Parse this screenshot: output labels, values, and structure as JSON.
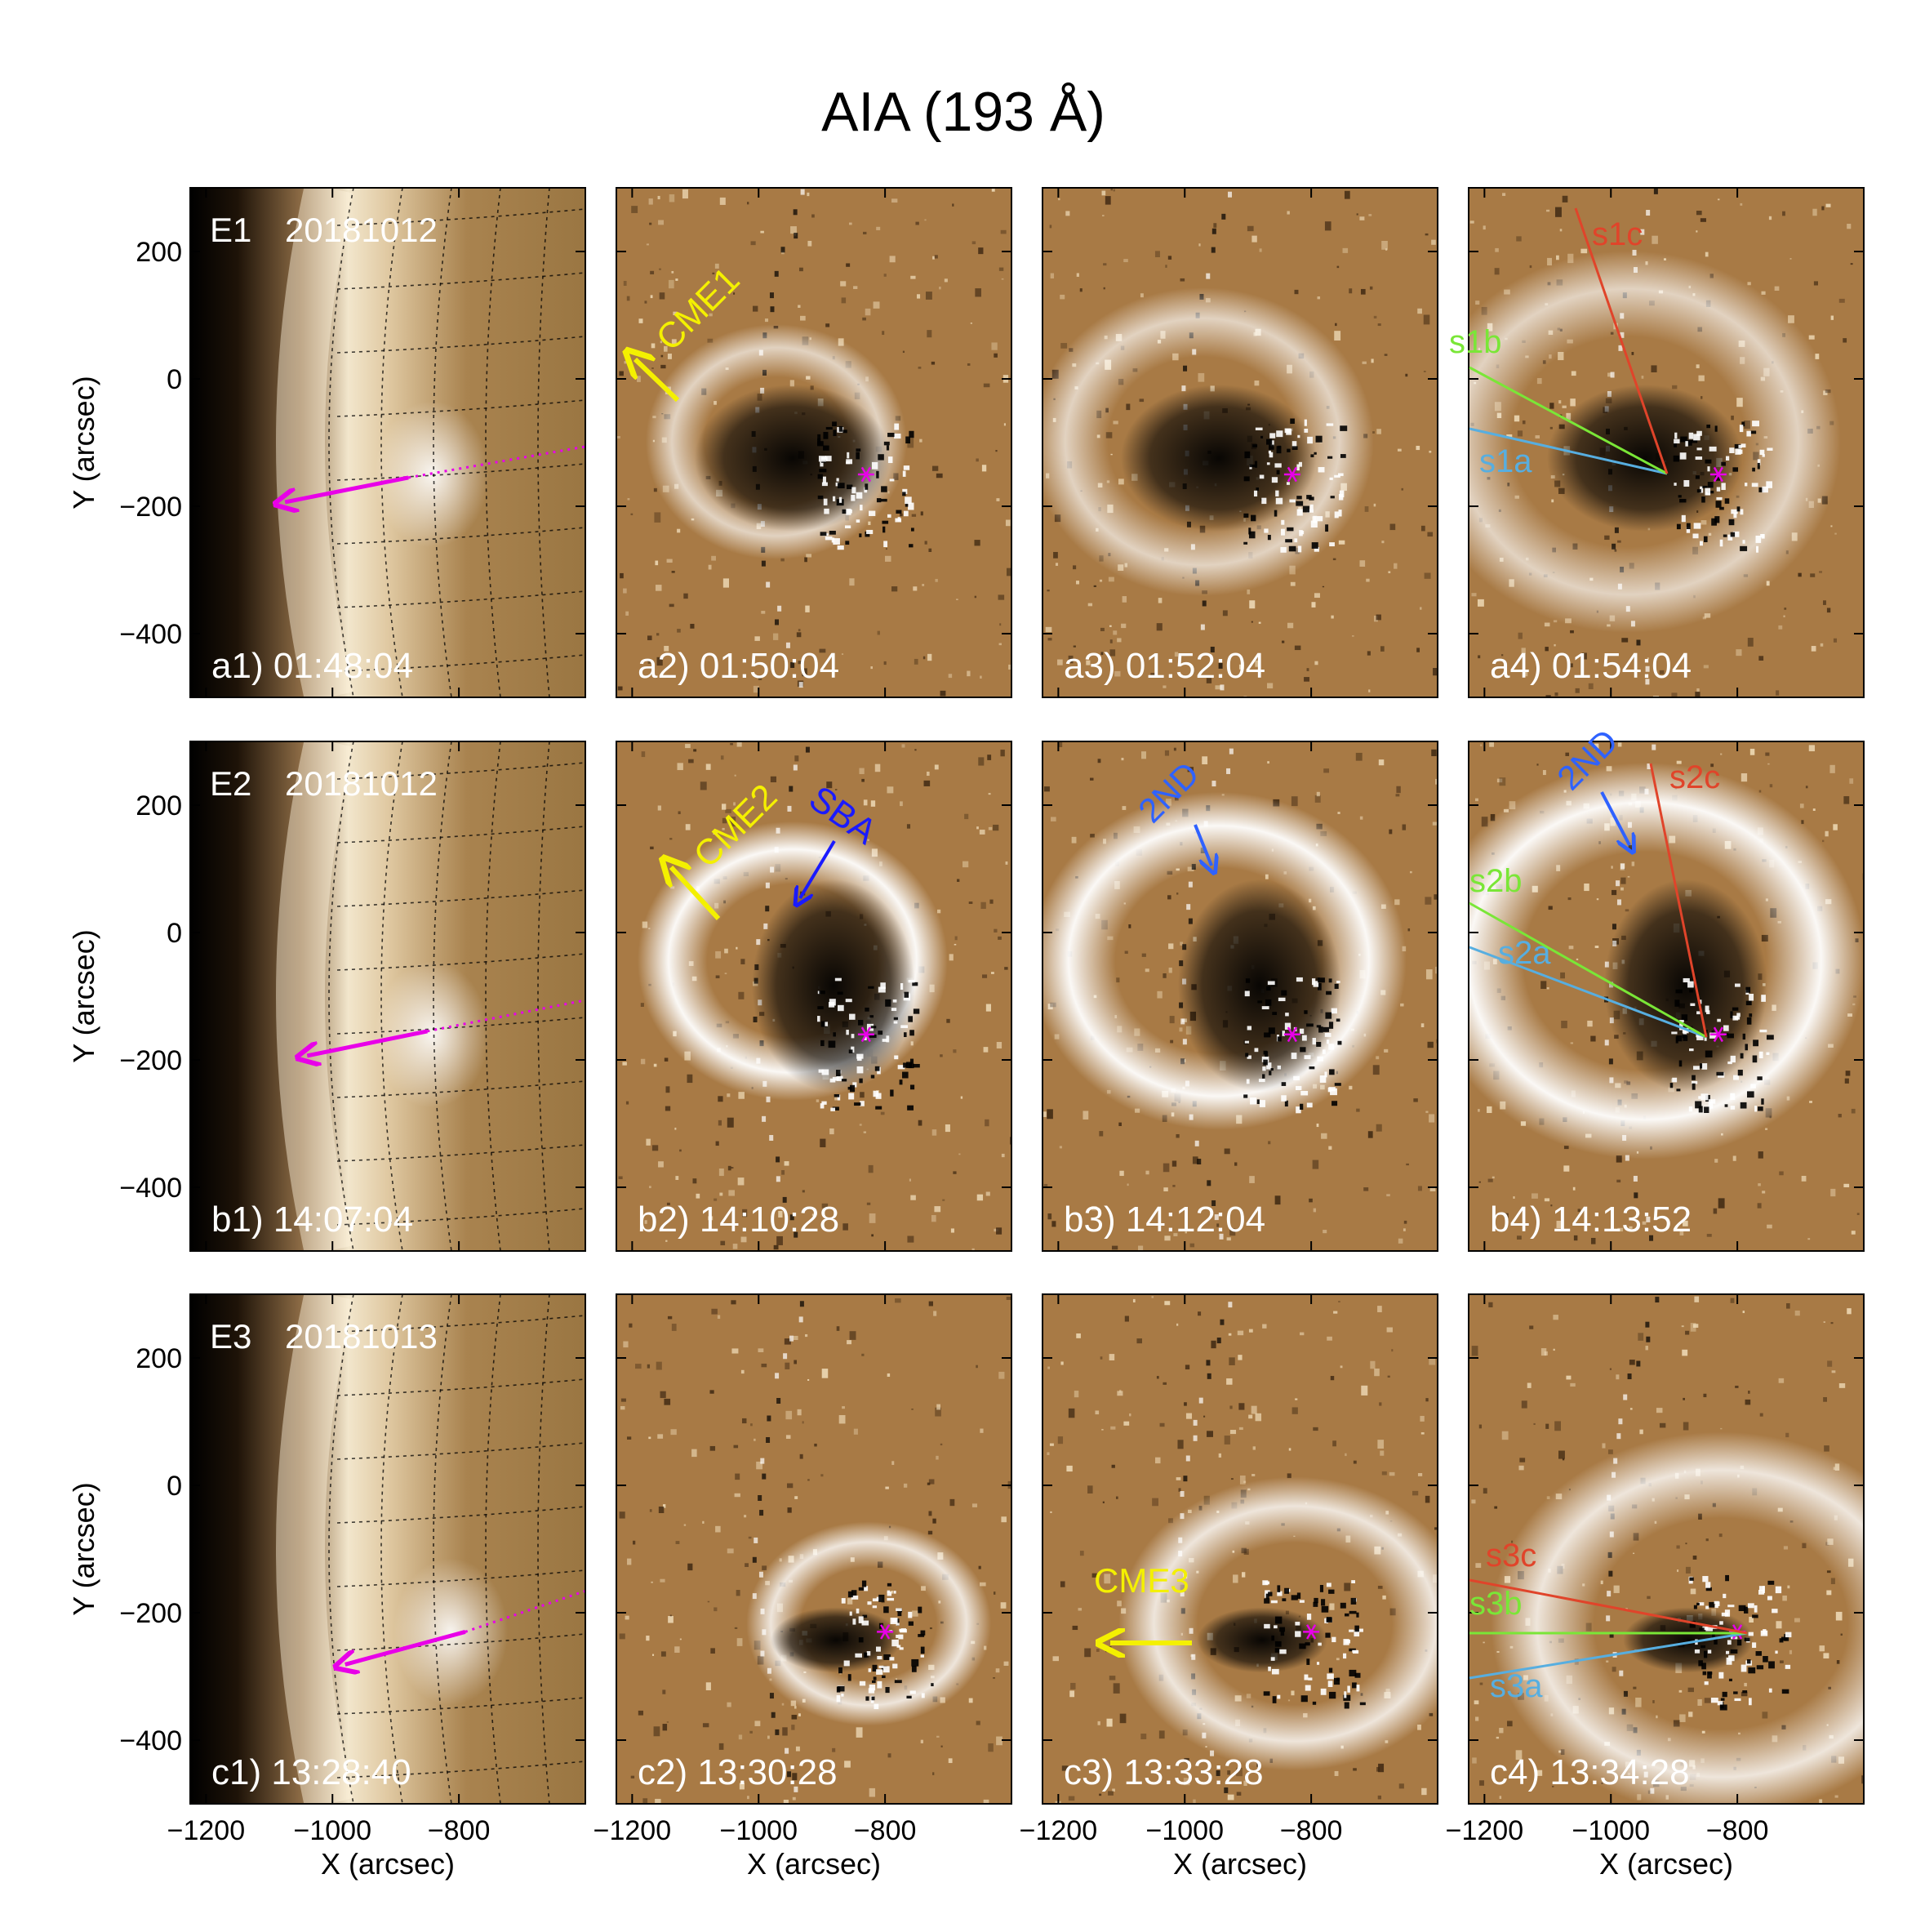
{
  "figure": {
    "title": "AIA (193 Å)",
    "xlabel": "X (arcsec)",
    "ylabel": "Y (arcsec)",
    "x_ticks": [
      "−1200",
      "−1000",
      "−800"
    ],
    "x_tick_values": [
      -1200,
      -1000,
      -800
    ],
    "y_ticks": [
      "200",
      "0",
      "−200",
      "−400"
    ],
    "y_tick_values": [
      200,
      0,
      -200,
      -400
    ],
    "x_range": [
      -1225,
      -600
    ],
    "y_range": [
      -500,
      300
    ]
  },
  "rows": [
    {
      "event": "E1",
      "date": "20181012",
      "panels": [
        {
          "id": "a1",
          "label": "a1) 01:48:04",
          "kind": "direct"
        },
        {
          "id": "a2",
          "label": "a2) 01:50:04",
          "kind": "diff"
        },
        {
          "id": "a3",
          "label": "a3) 01:52:04",
          "kind": "diff"
        },
        {
          "id": "a4",
          "label": "a4) 01:54:04",
          "kind": "diff"
        }
      ]
    },
    {
      "event": "E2",
      "date": "20181012",
      "panels": [
        {
          "id": "b1",
          "label": "b1) 14:07:04",
          "kind": "direct"
        },
        {
          "id": "b2",
          "label": "b2) 14:10:28",
          "kind": "diff"
        },
        {
          "id": "b3",
          "label": "b3) 14:12:04",
          "kind": "diff"
        },
        {
          "id": "b4",
          "label": "b4) 14:13:52",
          "kind": "diff"
        }
      ]
    },
    {
      "event": "E3",
      "date": "20181013",
      "panels": [
        {
          "id": "c1",
          "label": "c1) 13:28:40",
          "kind": "direct"
        },
        {
          "id": "c2",
          "label": "c2) 13:30:28",
          "kind": "diff"
        },
        {
          "id": "c3",
          "label": "c3) 13:33:28",
          "kind": "diff"
        },
        {
          "id": "c4",
          "label": "c4) 13:34:28",
          "kind": "diff"
        }
      ]
    }
  ],
  "annotations": {
    "cme1": "CME1",
    "cme2": "CME2",
    "cme3": "CME3",
    "sba": "SBA",
    "second_nd": "2ND",
    "slits_a": [
      "s1a",
      "s1b",
      "s1c"
    ],
    "slits_b": [
      "s2a",
      "s2b",
      "s2c"
    ],
    "slits_c": [
      "s3a",
      "s3b",
      "s3c"
    ]
  },
  "colors": {
    "yellow": "#f4f000",
    "blue": "#1a1aff",
    "blue_light": "#2f62ff",
    "magenta": "#e800e8",
    "green": "#7ae637",
    "cyan": "#57aee0",
    "red": "#e0442a",
    "diff_bg": "#a87a45"
  }
}
